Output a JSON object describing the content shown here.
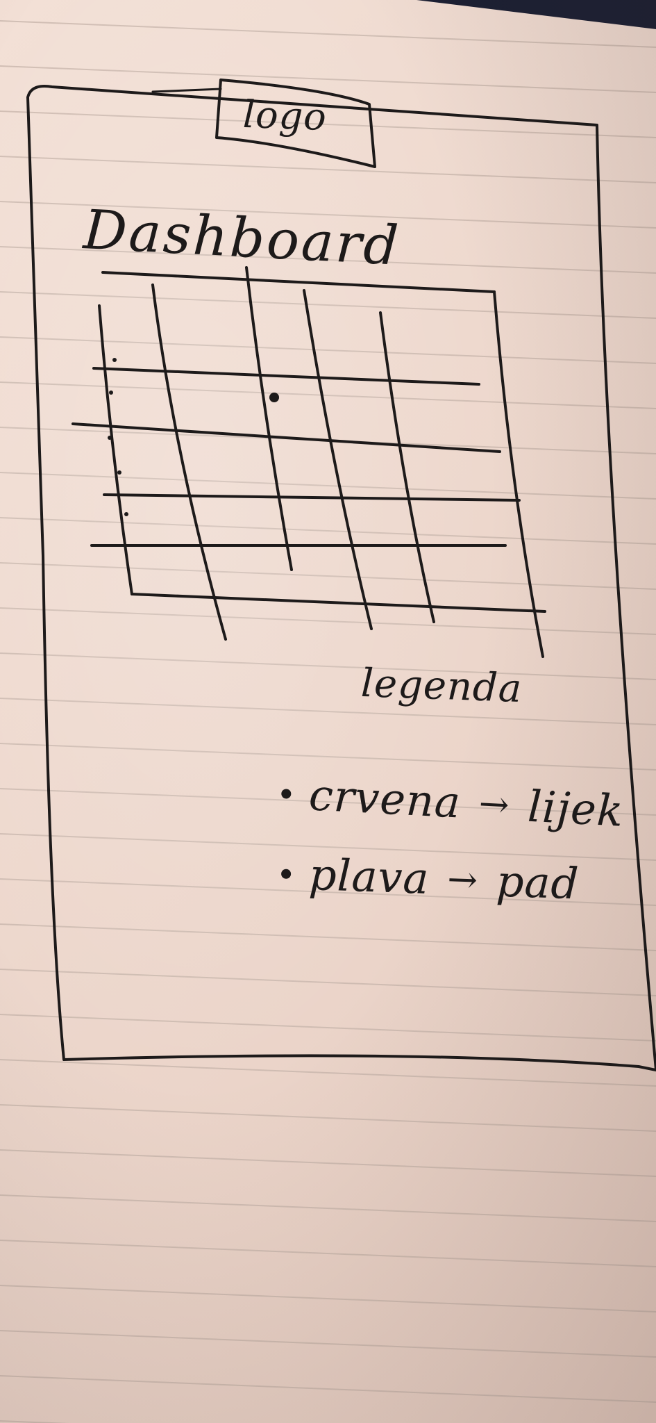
{
  "logo": "logo",
  "title": "Dashboard",
  "legend": {
    "title": "legenda",
    "items": [
      {
        "color_word": "crvena",
        "arrow": "→",
        "meaning": "lijek"
      },
      {
        "color_word": "plava",
        "arrow": "→",
        "meaning": "pad"
      }
    ]
  }
}
